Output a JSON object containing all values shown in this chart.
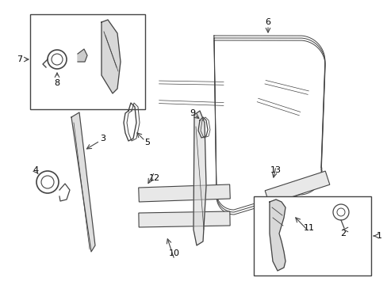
{
  "bg_color": "#ffffff",
  "line_color": "#444444",
  "box_color": "#000000",
  "fig_width": 4.89,
  "fig_height": 3.6,
  "dpi": 100
}
